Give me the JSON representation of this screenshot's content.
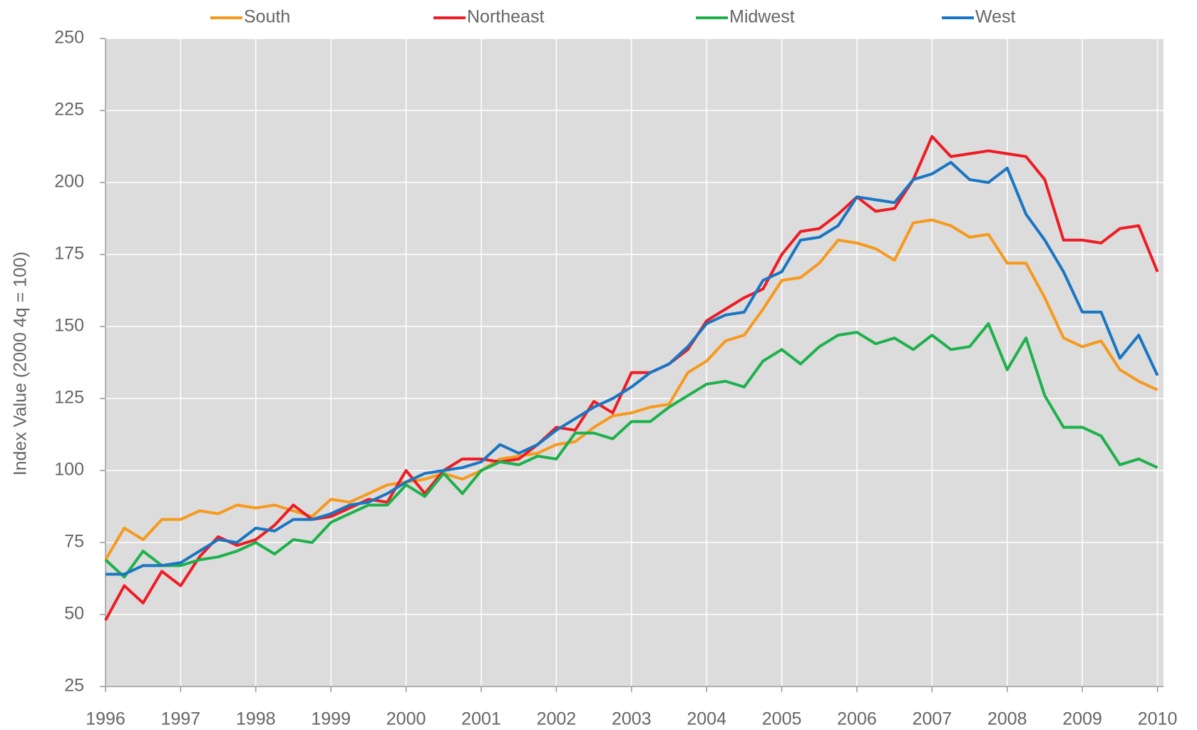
{
  "chart_data": {
    "type": "line",
    "y_label": "Index Value (2000 4q = 100)",
    "x": [
      1996,
      1996.25,
      1996.5,
      1996.75,
      1997,
      1997.25,
      1997.5,
      1997.75,
      1998,
      1998.25,
      1998.5,
      1998.75,
      1999,
      1999.25,
      1999.5,
      1999.75,
      2000,
      2000.25,
      2000.5,
      2000.75,
      2001,
      2001.25,
      2001.5,
      2001.75,
      2002,
      2002.25,
      2002.5,
      2002.75,
      2003,
      2003.25,
      2003.5,
      2003.75,
      2004,
      2004.25,
      2004.5,
      2004.75,
      2005,
      2005.25,
      2005.5,
      2005.75,
      2006,
      2006.25,
      2006.5,
      2006.75,
      2007,
      2007.25,
      2007.5,
      2007.75,
      2008,
      2008.25,
      2008.5,
      2008.75,
      2009,
      2009.25,
      2009.5,
      2009.75,
      2010
    ],
    "series": [
      {
        "name": "South",
        "color": "#f7991c",
        "values": [
          69,
          80,
          76,
          83,
          83,
          86,
          85,
          88,
          87,
          88,
          86,
          84,
          90,
          89,
          92,
          95,
          96,
          97,
          99,
          97,
          100,
          104,
          105,
          106,
          109,
          110,
          115,
          119,
          120,
          122,
          123,
          134,
          138,
          145,
          147,
          156,
          166,
          167,
          172,
          180,
          179,
          177,
          173,
          186,
          187,
          185,
          181,
          182,
          172,
          172,
          160,
          146,
          143,
          145,
          135,
          131,
          128
        ]
      },
      {
        "name": "Northeast",
        "color": "#ee1c24",
        "values": [
          48,
          60,
          54,
          65,
          60,
          70,
          77,
          74,
          76,
          81,
          88,
          83,
          84,
          87,
          90,
          89,
          100,
          92,
          100,
          104,
          104,
          103,
          104,
          109,
          115,
          114,
          124,
          120,
          134,
          134,
          137,
          142,
          152,
          156,
          160,
          163,
          175,
          183,
          184,
          189,
          195,
          190,
          191,
          201,
          216,
          209,
          210,
          211,
          210,
          209,
          201,
          180,
          180,
          179,
          184,
          185,
          169
        ]
      },
      {
        "name": "Midwest",
        "color": "#1db14b",
        "values": [
          69,
          63,
          72,
          67,
          67,
          69,
          70,
          72,
          75,
          71,
          76,
          75,
          82,
          85,
          88,
          88,
          95,
          91,
          99,
          92,
          100,
          103,
          102,
          105,
          104,
          113,
          113,
          111,
          117,
          117,
          122,
          126,
          130,
          131,
          129,
          138,
          142,
          137,
          143,
          147,
          148,
          144,
          146,
          142,
          147,
          142,
          143,
          151,
          135,
          146,
          126,
          115,
          115,
          112,
          102,
          104,
          101
        ]
      },
      {
        "name": "West",
        "color": "#1a75c2",
        "values": [
          64,
          64,
          67,
          67,
          68,
          72,
          76,
          75,
          80,
          79,
          83,
          83,
          85,
          88,
          89,
          92,
          96,
          99,
          100,
          101,
          103,
          109,
          106,
          109,
          114,
          118,
          122,
          125,
          129,
          134,
          137,
          143,
          151,
          154,
          155,
          166,
          169,
          180,
          181,
          185,
          195,
          194,
          193,
          201,
          203,
          207,
          201,
          200,
          205,
          189,
          180,
          169,
          155,
          155,
          139,
          147,
          133
        ]
      }
    ],
    "xlim": [
      1996,
      2010.08
    ],
    "xticks": [
      1996,
      1997,
      1998,
      1999,
      2000,
      2001,
      2002,
      2003,
      2004,
      2005,
      2006,
      2007,
      2008,
      2009,
      2010
    ],
    "ylim": [
      25,
      250
    ],
    "yticks": [
      25,
      50,
      75,
      100,
      125,
      150,
      175,
      200,
      225,
      250
    ],
    "grid": true,
    "legend": "top",
    "background": "#dcdcdc"
  }
}
